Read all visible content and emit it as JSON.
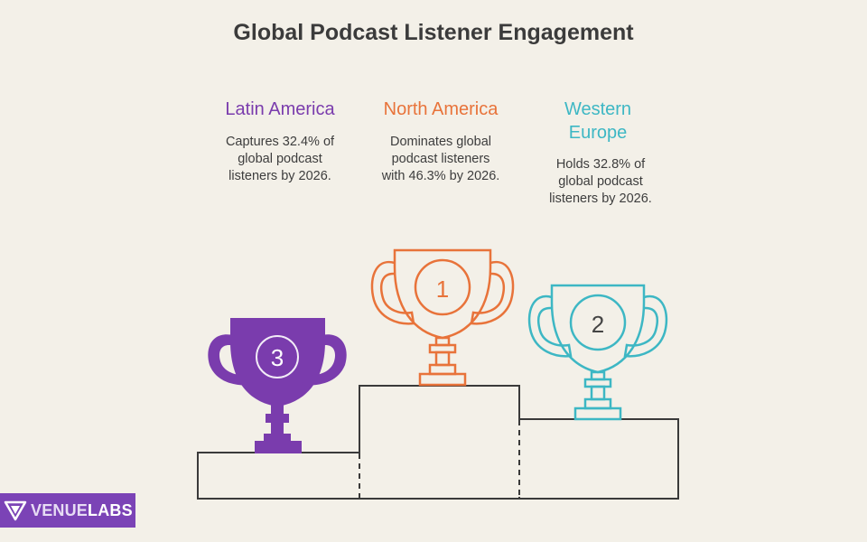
{
  "title": "Global Podcast Listener Engagement",
  "colors": {
    "background": "#f3f0e8",
    "latin_america": "#7a3cad",
    "north_america": "#e8733a",
    "western_europe": "#3db7c4",
    "podium": "#3a3a3a"
  },
  "entries": {
    "latin_america": {
      "name": "Latin America",
      "rank": "3",
      "lines": [
        "Captures 32.4% of",
        "global podcast",
        "listeners by 2026."
      ]
    },
    "north_america": {
      "name": "North America",
      "rank": "1",
      "lines": [
        "Dominates global",
        "podcast listeners",
        "with 46.3% by 2026."
      ]
    },
    "western_europe": {
      "name_lines": [
        "Western",
        "Europe"
      ],
      "rank": "2",
      "lines": [
        "Holds 32.8% of",
        "global podcast",
        "listeners by 2026."
      ]
    }
  },
  "logo": {
    "part1": "VENUE",
    "part2": "LABS"
  }
}
